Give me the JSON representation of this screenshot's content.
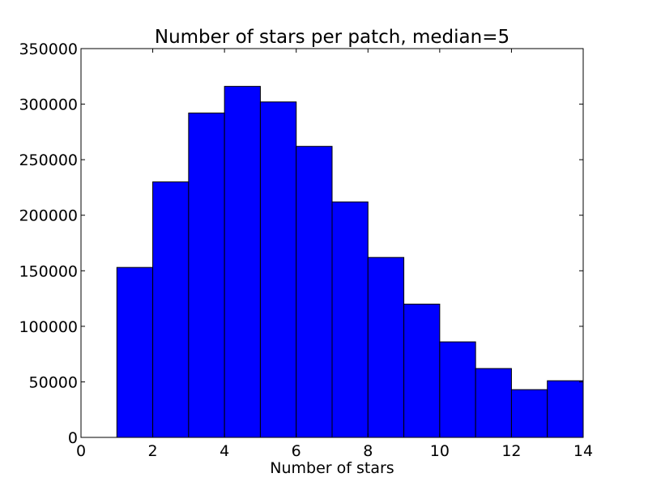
{
  "chart_data": {
    "type": "bar",
    "title": "Number of stars per patch, median=5",
    "xlabel": "Number of stars",
    "ylabel": "",
    "xlim": [
      0,
      14
    ],
    "ylim": [
      0,
      350000
    ],
    "x_ticks": [
      0,
      2,
      4,
      6,
      8,
      10,
      12,
      14
    ],
    "y_ticks": [
      0,
      50000,
      100000,
      150000,
      200000,
      250000,
      300000,
      350000
    ],
    "grid": false,
    "legend": "none",
    "bar_color": "#0000ff",
    "bins": [
      {
        "x0": 0,
        "x1": 1,
        "value": 0
      },
      {
        "x0": 1,
        "x1": 2,
        "value": 153000
      },
      {
        "x0": 2,
        "x1": 3,
        "value": 230000
      },
      {
        "x0": 3,
        "x1": 4,
        "value": 292000
      },
      {
        "x0": 4,
        "x1": 5,
        "value": 316000
      },
      {
        "x0": 5,
        "x1": 6,
        "value": 302000
      },
      {
        "x0": 6,
        "x1": 7,
        "value": 262000
      },
      {
        "x0": 7,
        "x1": 8,
        "value": 212000
      },
      {
        "x0": 8,
        "x1": 9,
        "value": 162000
      },
      {
        "x0": 9,
        "x1": 10,
        "value": 120000
      },
      {
        "x0": 10,
        "x1": 11,
        "value": 86000
      },
      {
        "x0": 11,
        "x1": 12,
        "value": 62000
      },
      {
        "x0": 12,
        "x1": 13,
        "value": 43000
      },
      {
        "x0": 13,
        "x1": 14,
        "value": 51000
      }
    ]
  }
}
